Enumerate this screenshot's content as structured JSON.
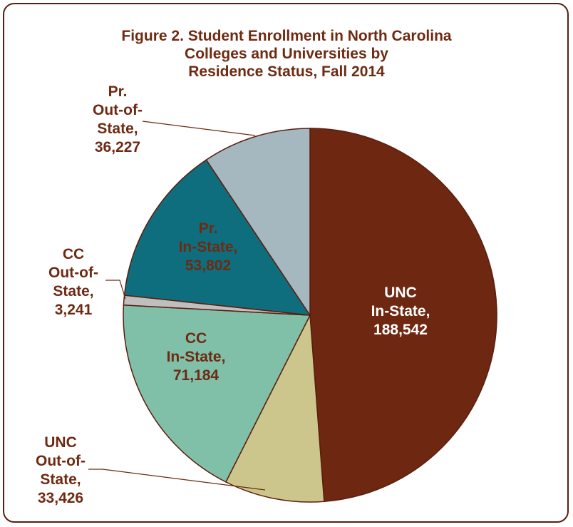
{
  "chart_data": {
    "type": "pie",
    "title_lines": [
      "Figure 2. Student Enrollment in North Carolina",
      "Colleges and Universities by",
      "Residence Status, Fall 2014"
    ],
    "slices": [
      {
        "name_lines": [
          "UNC",
          "In-State,"
        ],
        "value": 188542,
        "value_label": "188,542",
        "color": "#6e2710"
      },
      {
        "name_lines": [
          "UNC",
          "Out-of-",
          "State,"
        ],
        "value": 33426,
        "value_label": "33,426",
        "color": "#cdc68c"
      },
      {
        "name_lines": [
          "CC",
          "In-State,"
        ],
        "value": 71184,
        "value_label": "71,184",
        "color": "#80bfa8"
      },
      {
        "name_lines": [
          "CC",
          "Out-of-",
          "State,"
        ],
        "value": 3241,
        "value_label": "3,241",
        "color": "#bfbfbf"
      },
      {
        "name_lines": [
          "Pr.",
          "In-State,"
        ],
        "value": 53802,
        "value_label": "53,802",
        "color": "#0f6e7e"
      },
      {
        "name_lines": [
          "Pr.",
          "Out-of-",
          "State,"
        ],
        "value": 36227,
        "value_label": "36,227",
        "color": "#a5b8bf"
      }
    ],
    "colors": {
      "border": "#5a1e0e",
      "text": "#6e2a12",
      "slice_outline": "#5a1e0e"
    }
  }
}
